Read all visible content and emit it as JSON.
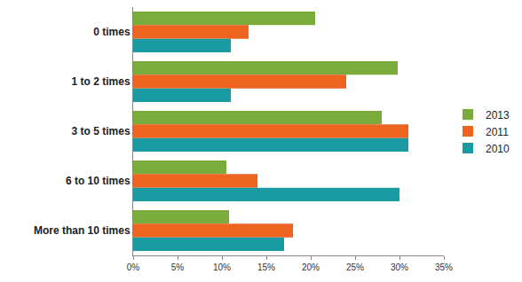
{
  "chart_data": {
    "type": "bar",
    "orientation": "horizontal",
    "categories": [
      "0 times",
      "1 to 2 times",
      "3 to 5 times",
      "6 to 10 times",
      "More than 10 times"
    ],
    "series": [
      {
        "name": "2013",
        "color": "#7aab3c",
        "values": [
          20.5,
          29.8,
          28,
          10.5,
          10.8
        ]
      },
      {
        "name": "2011",
        "color": "#ec6420",
        "values": [
          13,
          24,
          31,
          14,
          18
        ]
      },
      {
        "name": "2010",
        "color": "#1a9ba3",
        "values": [
          11,
          11,
          31,
          30,
          17
        ]
      }
    ],
    "xlim": [
      0,
      35
    ],
    "xticks": [
      {
        "value": 0,
        "label": "0%"
      },
      {
        "value": 5,
        "label": "5%"
      },
      {
        "value": 10,
        "label": "10%"
      },
      {
        "value": 15,
        "label": "15%"
      },
      {
        "value": 20,
        "label": "20%"
      },
      {
        "value": 25,
        "label": "25%"
      },
      {
        "value": 30,
        "label": "30%"
      },
      {
        "value": 35,
        "label": "35%"
      }
    ],
    "grid": false,
    "legend": "right"
  }
}
